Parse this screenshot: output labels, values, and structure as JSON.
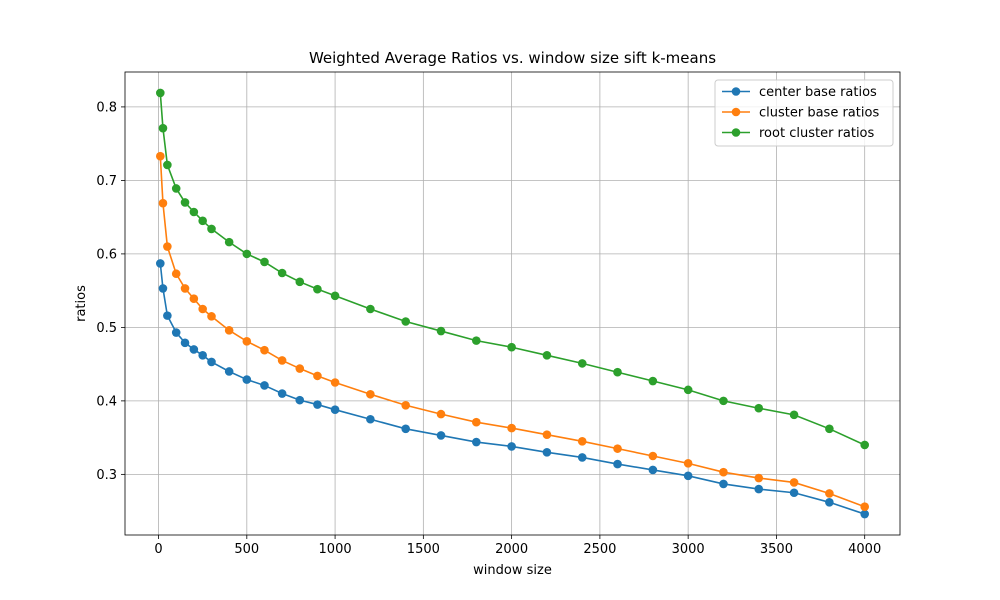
{
  "chart_data": {
    "type": "line",
    "title": "Weighted Average Ratios vs. window size sift k-means",
    "xlabel": "window size",
    "ylabel": "ratios",
    "xlim": [
      -190,
      4200
    ],
    "ylim": [
      0.2175,
      0.8475
    ],
    "xticks": [
      0,
      500,
      1000,
      1500,
      2000,
      2500,
      3000,
      3500,
      4000
    ],
    "yticks": [
      0.3,
      0.4,
      0.5,
      0.6,
      0.7,
      0.8
    ],
    "grid": true,
    "legend_position": "top-right",
    "x": [
      10,
      25,
      50,
      100,
      150,
      200,
      250,
      300,
      400,
      500,
      600,
      700,
      800,
      900,
      1000,
      1200,
      1400,
      1600,
      1800,
      2000,
      2200,
      2400,
      2600,
      2800,
      3000,
      3200,
      3400,
      3600,
      3800,
      4000
    ],
    "series": [
      {
        "name": "center base ratios",
        "color": "#1f77b4",
        "values": [
          0.587,
          0.553,
          0.516,
          0.493,
          0.479,
          0.47,
          0.462,
          0.453,
          0.44,
          0.429,
          0.421,
          0.41,
          0.401,
          0.395,
          0.388,
          0.375,
          0.362,
          0.353,
          0.344,
          0.338,
          0.33,
          0.323,
          0.314,
          0.306,
          0.298,
          0.287,
          0.28,
          0.275,
          0.262,
          0.246
        ]
      },
      {
        "name": "cluster base ratios",
        "color": "#ff7f0e",
        "values": [
          0.733,
          0.669,
          0.61,
          0.573,
          0.553,
          0.539,
          0.525,
          0.515,
          0.496,
          0.481,
          0.469,
          0.455,
          0.444,
          0.434,
          0.425,
          0.409,
          0.394,
          0.382,
          0.371,
          0.363,
          0.354,
          0.345,
          0.335,
          0.325,
          0.315,
          0.303,
          0.295,
          0.289,
          0.274,
          0.256
        ]
      },
      {
        "name": "root cluster ratios",
        "color": "#2ca02c",
        "values": [
          0.819,
          0.771,
          0.721,
          0.689,
          0.67,
          0.657,
          0.645,
          0.634,
          0.616,
          0.6,
          0.589,
          0.574,
          0.562,
          0.552,
          0.543,
          0.525,
          0.508,
          0.495,
          0.482,
          0.473,
          0.462,
          0.451,
          0.439,
          0.427,
          0.415,
          0.4,
          0.39,
          0.381,
          0.362,
          0.34
        ]
      }
    ]
  }
}
